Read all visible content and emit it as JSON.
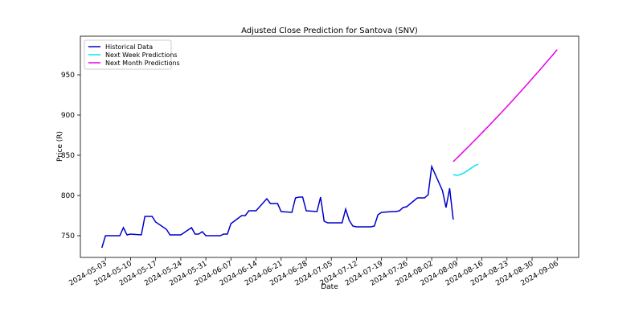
{
  "chart_data": {
    "type": "line",
    "title": "Adjusted Close Prediction for Santova (SNV)",
    "x_label": "Date",
    "y_label": "Price (R)",
    "xlim": [
      "2024-04-26",
      "2024-09-12"
    ],
    "xticks": [
      "2024-05-03",
      "2024-05-10",
      "2024-05-17",
      "2024-05-24",
      "2024-05-31",
      "2024-06-07",
      "2024-06-14",
      "2024-06-21",
      "2024-06-28",
      "2024-07-05",
      "2024-07-12",
      "2024-07-19",
      "2024-07-26",
      "2024-08-02",
      "2024-08-09",
      "2024-08-16",
      "2024-08-23",
      "2024-08-30",
      "2024-09-06"
    ],
    "ylim": [
      723,
      998
    ],
    "yticks": [
      750,
      800,
      850,
      900,
      950
    ],
    "legend": "upper left",
    "series": [
      {
        "name": "Historical Data",
        "color": "#0000cc",
        "x": [
          "2024-05-02",
          "2024-05-03",
          "2024-05-06",
          "2024-05-07",
          "2024-05-08",
          "2024-05-09",
          "2024-05-10",
          "2024-05-13",
          "2024-05-14",
          "2024-05-15",
          "2024-05-16",
          "2024-05-17",
          "2024-05-20",
          "2024-05-21",
          "2024-05-22",
          "2024-05-23",
          "2024-05-24",
          "2024-05-27",
          "2024-05-28",
          "2024-05-29",
          "2024-05-30",
          "2024-05-31",
          "2024-06-03",
          "2024-06-04",
          "2024-06-05",
          "2024-06-06",
          "2024-06-07",
          "2024-06-10",
          "2024-06-11",
          "2024-06-12",
          "2024-06-13",
          "2024-06-14",
          "2024-06-17",
          "2024-06-18",
          "2024-06-19",
          "2024-06-20",
          "2024-06-21",
          "2024-06-24",
          "2024-06-25",
          "2024-06-26",
          "2024-06-27",
          "2024-06-28",
          "2024-07-01",
          "2024-07-02",
          "2024-07-03",
          "2024-07-04",
          "2024-07-05",
          "2024-07-08",
          "2024-07-09",
          "2024-07-10",
          "2024-07-11",
          "2024-07-12",
          "2024-07-15",
          "2024-07-16",
          "2024-07-17",
          "2024-07-18",
          "2024-07-19",
          "2024-07-22",
          "2024-07-23",
          "2024-07-24",
          "2024-07-25",
          "2024-07-26",
          "2024-07-29",
          "2024-07-30",
          "2024-07-31",
          "2024-08-01",
          "2024-08-02",
          "2024-08-05",
          "2024-08-06",
          "2024-08-07",
          "2024-08-08"
        ],
        "values": [
          735,
          750,
          750,
          750,
          760,
          751,
          752,
          751,
          774,
          774,
          774,
          767,
          758,
          751,
          751,
          751,
          751,
          760,
          752,
          752,
          755,
          750,
          750,
          750,
          752,
          752,
          765,
          775,
          775,
          781,
          781,
          781,
          796,
          790,
          790,
          790,
          780,
          779,
          797,
          798,
          798,
          781,
          780,
          798,
          768,
          766,
          766,
          766,
          783,
          769,
          762,
          761,
          761,
          761,
          762,
          776,
          779,
          780,
          780,
          781,
          785,
          786,
          797,
          797,
          797,
          801,
          836,
          806,
          785,
          809,
          770
        ]
      },
      {
        "name": "Next Week Predictions",
        "color": "#00e5ee",
        "x": [
          "2024-08-08",
          "2024-08-09",
          "2024-08-10",
          "2024-08-11",
          "2024-08-12",
          "2024-08-13",
          "2024-08-14",
          "2024-08-15"
        ],
        "values": [
          826,
          825,
          826,
          828,
          831,
          834,
          837,
          839
        ]
      },
      {
        "name": "Next Month Predictions",
        "color": "#e600e6",
        "x": [
          "2024-08-08",
          "2024-08-09",
          "2024-08-10",
          "2024-08-11",
          "2024-08-12",
          "2024-08-13",
          "2024-08-14",
          "2024-08-15",
          "2024-08-16",
          "2024-08-17",
          "2024-08-18",
          "2024-08-19",
          "2024-08-20",
          "2024-08-21",
          "2024-08-22",
          "2024-08-23",
          "2024-08-24",
          "2024-08-25",
          "2024-08-26",
          "2024-08-27",
          "2024-08-28",
          "2024-08-29",
          "2024-08-30",
          "2024-08-31",
          "2024-09-01",
          "2024-09-02",
          "2024-09-03",
          "2024-09-04",
          "2024-09-05",
          "2024-09-06"
        ],
        "values": [
          842,
          846.4,
          850.8,
          855.2,
          859.6,
          864.1,
          868.6,
          873.1,
          877.7,
          882.3,
          886.9,
          891.6,
          896.3,
          901,
          905.8,
          910.6,
          915.4,
          920.3,
          925.2,
          930.1,
          935.1,
          940.1,
          945.1,
          950.2,
          955.3,
          960.4,
          965.6,
          970.8,
          976,
          981.3
        ]
      }
    ]
  }
}
